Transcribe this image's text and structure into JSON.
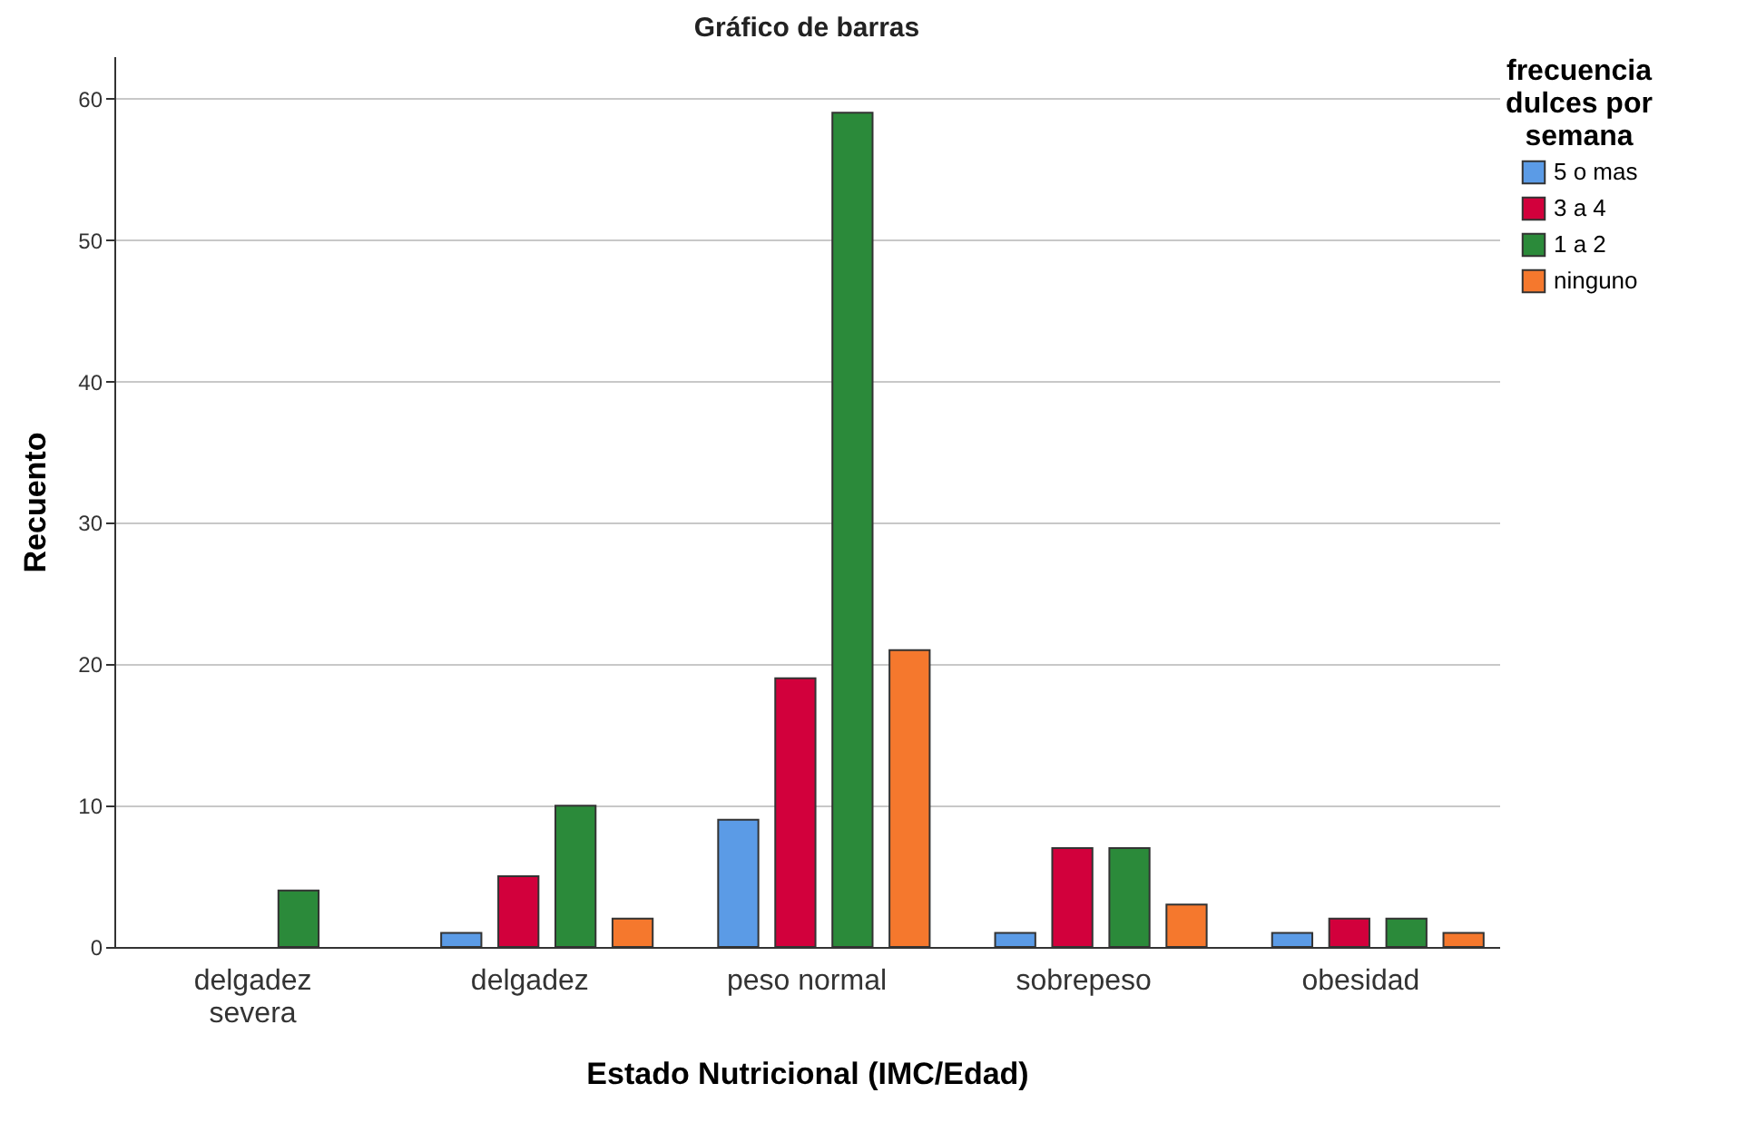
{
  "chart_data": {
    "type": "bar",
    "title": "Gráfico de barras",
    "xlabel": "Estado Nutricional (IMC/Edad)",
    "ylabel": "Recuento",
    "legend_title": "frecuencia dulces por semana",
    "categories": [
      "delgadez severa",
      "delgadez",
      "peso normal",
      "sobrepeso",
      "obesidad"
    ],
    "series": [
      {
        "name": "5 o mas",
        "color": "#5b9be6",
        "values": [
          null,
          1,
          9,
          1,
          1
        ]
      },
      {
        "name": "3 a 4",
        "color": "#d2003c",
        "values": [
          null,
          5,
          19,
          7,
          2
        ]
      },
      {
        "name": "1 a 2",
        "color": "#2b8a3a",
        "values": [
          4,
          10,
          59,
          7,
          2
        ]
      },
      {
        "name": "ninguno",
        "color": "#f5782d",
        "values": [
          null,
          2,
          21,
          3,
          1
        ]
      }
    ],
    "ylim": [
      0,
      63
    ],
    "yticks": [
      0,
      10,
      20,
      30,
      40,
      50,
      60
    ],
    "grid": "y",
    "legend": "top right"
  }
}
